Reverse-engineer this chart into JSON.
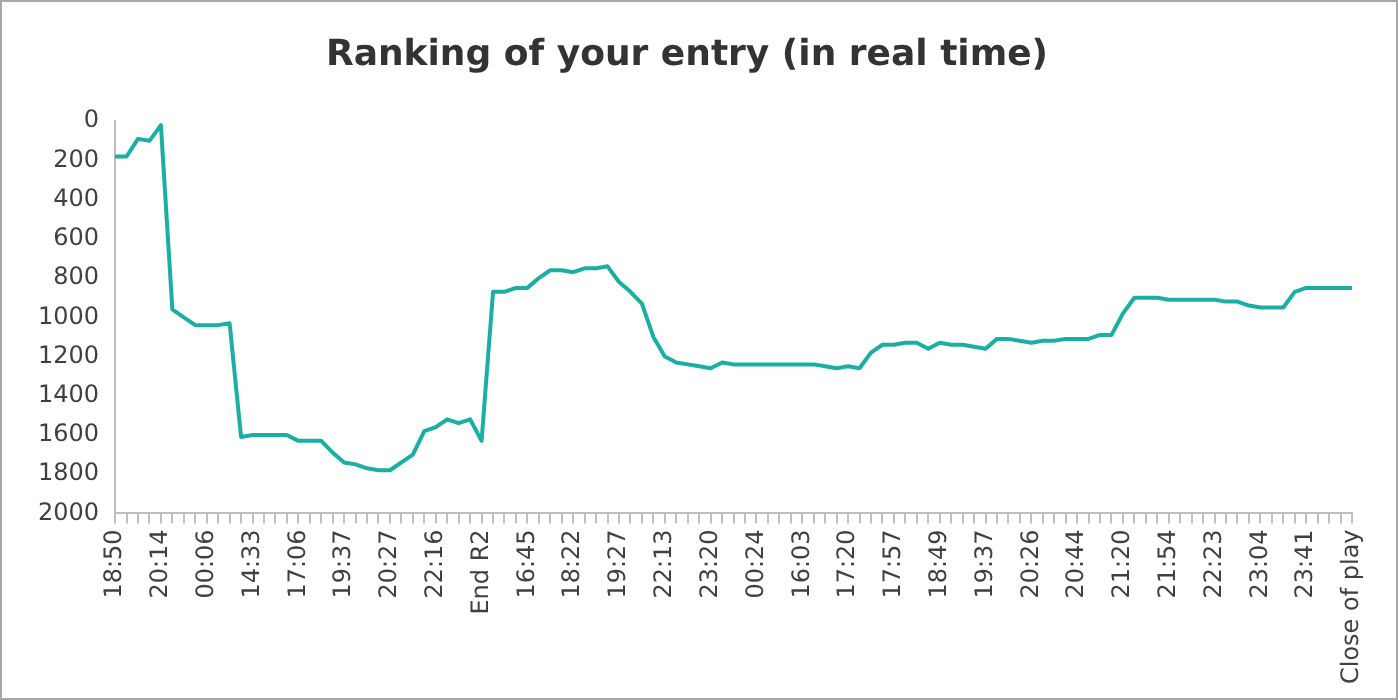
{
  "chart_data": {
    "type": "line",
    "title": "Ranking of your entry (in real time)",
    "categories": [
      "18:50",
      null,
      null,
      null,
      "20:14",
      null,
      null,
      null,
      "00:06",
      null,
      null,
      null,
      "14:33",
      null,
      null,
      null,
      "17:06",
      null,
      null,
      null,
      "19:37",
      null,
      null,
      null,
      "20:27",
      null,
      null,
      null,
      "22:16",
      null,
      null,
      null,
      "End R2",
      null,
      null,
      null,
      "16:45",
      null,
      null,
      null,
      "18:22",
      null,
      null,
      null,
      "19:27",
      null,
      null,
      null,
      "22:13",
      null,
      null,
      null,
      "23:20",
      null,
      null,
      null,
      "00:24",
      null,
      null,
      null,
      "16:03",
      null,
      null,
      null,
      "17:20",
      null,
      null,
      null,
      "17:57",
      null,
      null,
      null,
      "18:49",
      null,
      null,
      null,
      "19:37",
      null,
      null,
      null,
      "20:26",
      null,
      null,
      null,
      "20:44",
      null,
      null,
      null,
      "21:20",
      null,
      null,
      null,
      "21:54",
      null,
      null,
      null,
      "22:23",
      null,
      null,
      null,
      "23:04",
      null,
      null,
      null,
      "23:41",
      null,
      null,
      null,
      "Close of play"
    ],
    "series": [
      {
        "color": "#1aafa5",
        "values": [
          180,
          180,
          90,
          100,
          20,
          960,
          1000,
          1040,
          1040,
          1040,
          1030,
          1610,
          1600,
          1600,
          1600,
          1600,
          1630,
          1630,
          1630,
          1690,
          1740,
          1750,
          1770,
          1780,
          1780,
          1740,
          1700,
          1580,
          1560,
          1520,
          1540,
          1520,
          1630,
          870,
          870,
          850,
          850,
          800,
          760,
          760,
          770,
          750,
          750,
          740,
          820,
          870,
          930,
          1100,
          1200,
          1230,
          1240,
          1250,
          1260,
          1230,
          1240,
          1240,
          1240,
          1240,
          1240,
          1240,
          1240,
          1240,
          1250,
          1260,
          1250,
          1260,
          1180,
          1140,
          1140,
          1130,
          1130,
          1160,
          1130,
          1140,
          1140,
          1150,
          1160,
          1110,
          1110,
          1120,
          1130,
          1120,
          1120,
          1110,
          1110,
          1110,
          1090,
          1090,
          980,
          900,
          900,
          900,
          910,
          910,
          910,
          910,
          910,
          920,
          920,
          940,
          950,
          950,
          950,
          870,
          850,
          850,
          850,
          850,
          850
        ]
      }
    ],
    "ylim": [
      2000,
      0
    ],
    "yticks": [
      0,
      200,
      400,
      600,
      800,
      1000,
      1200,
      1400,
      1600,
      1800,
      2000
    ],
    "grid": false,
    "legend": false,
    "marker": "none",
    "line_style": "solid"
  }
}
